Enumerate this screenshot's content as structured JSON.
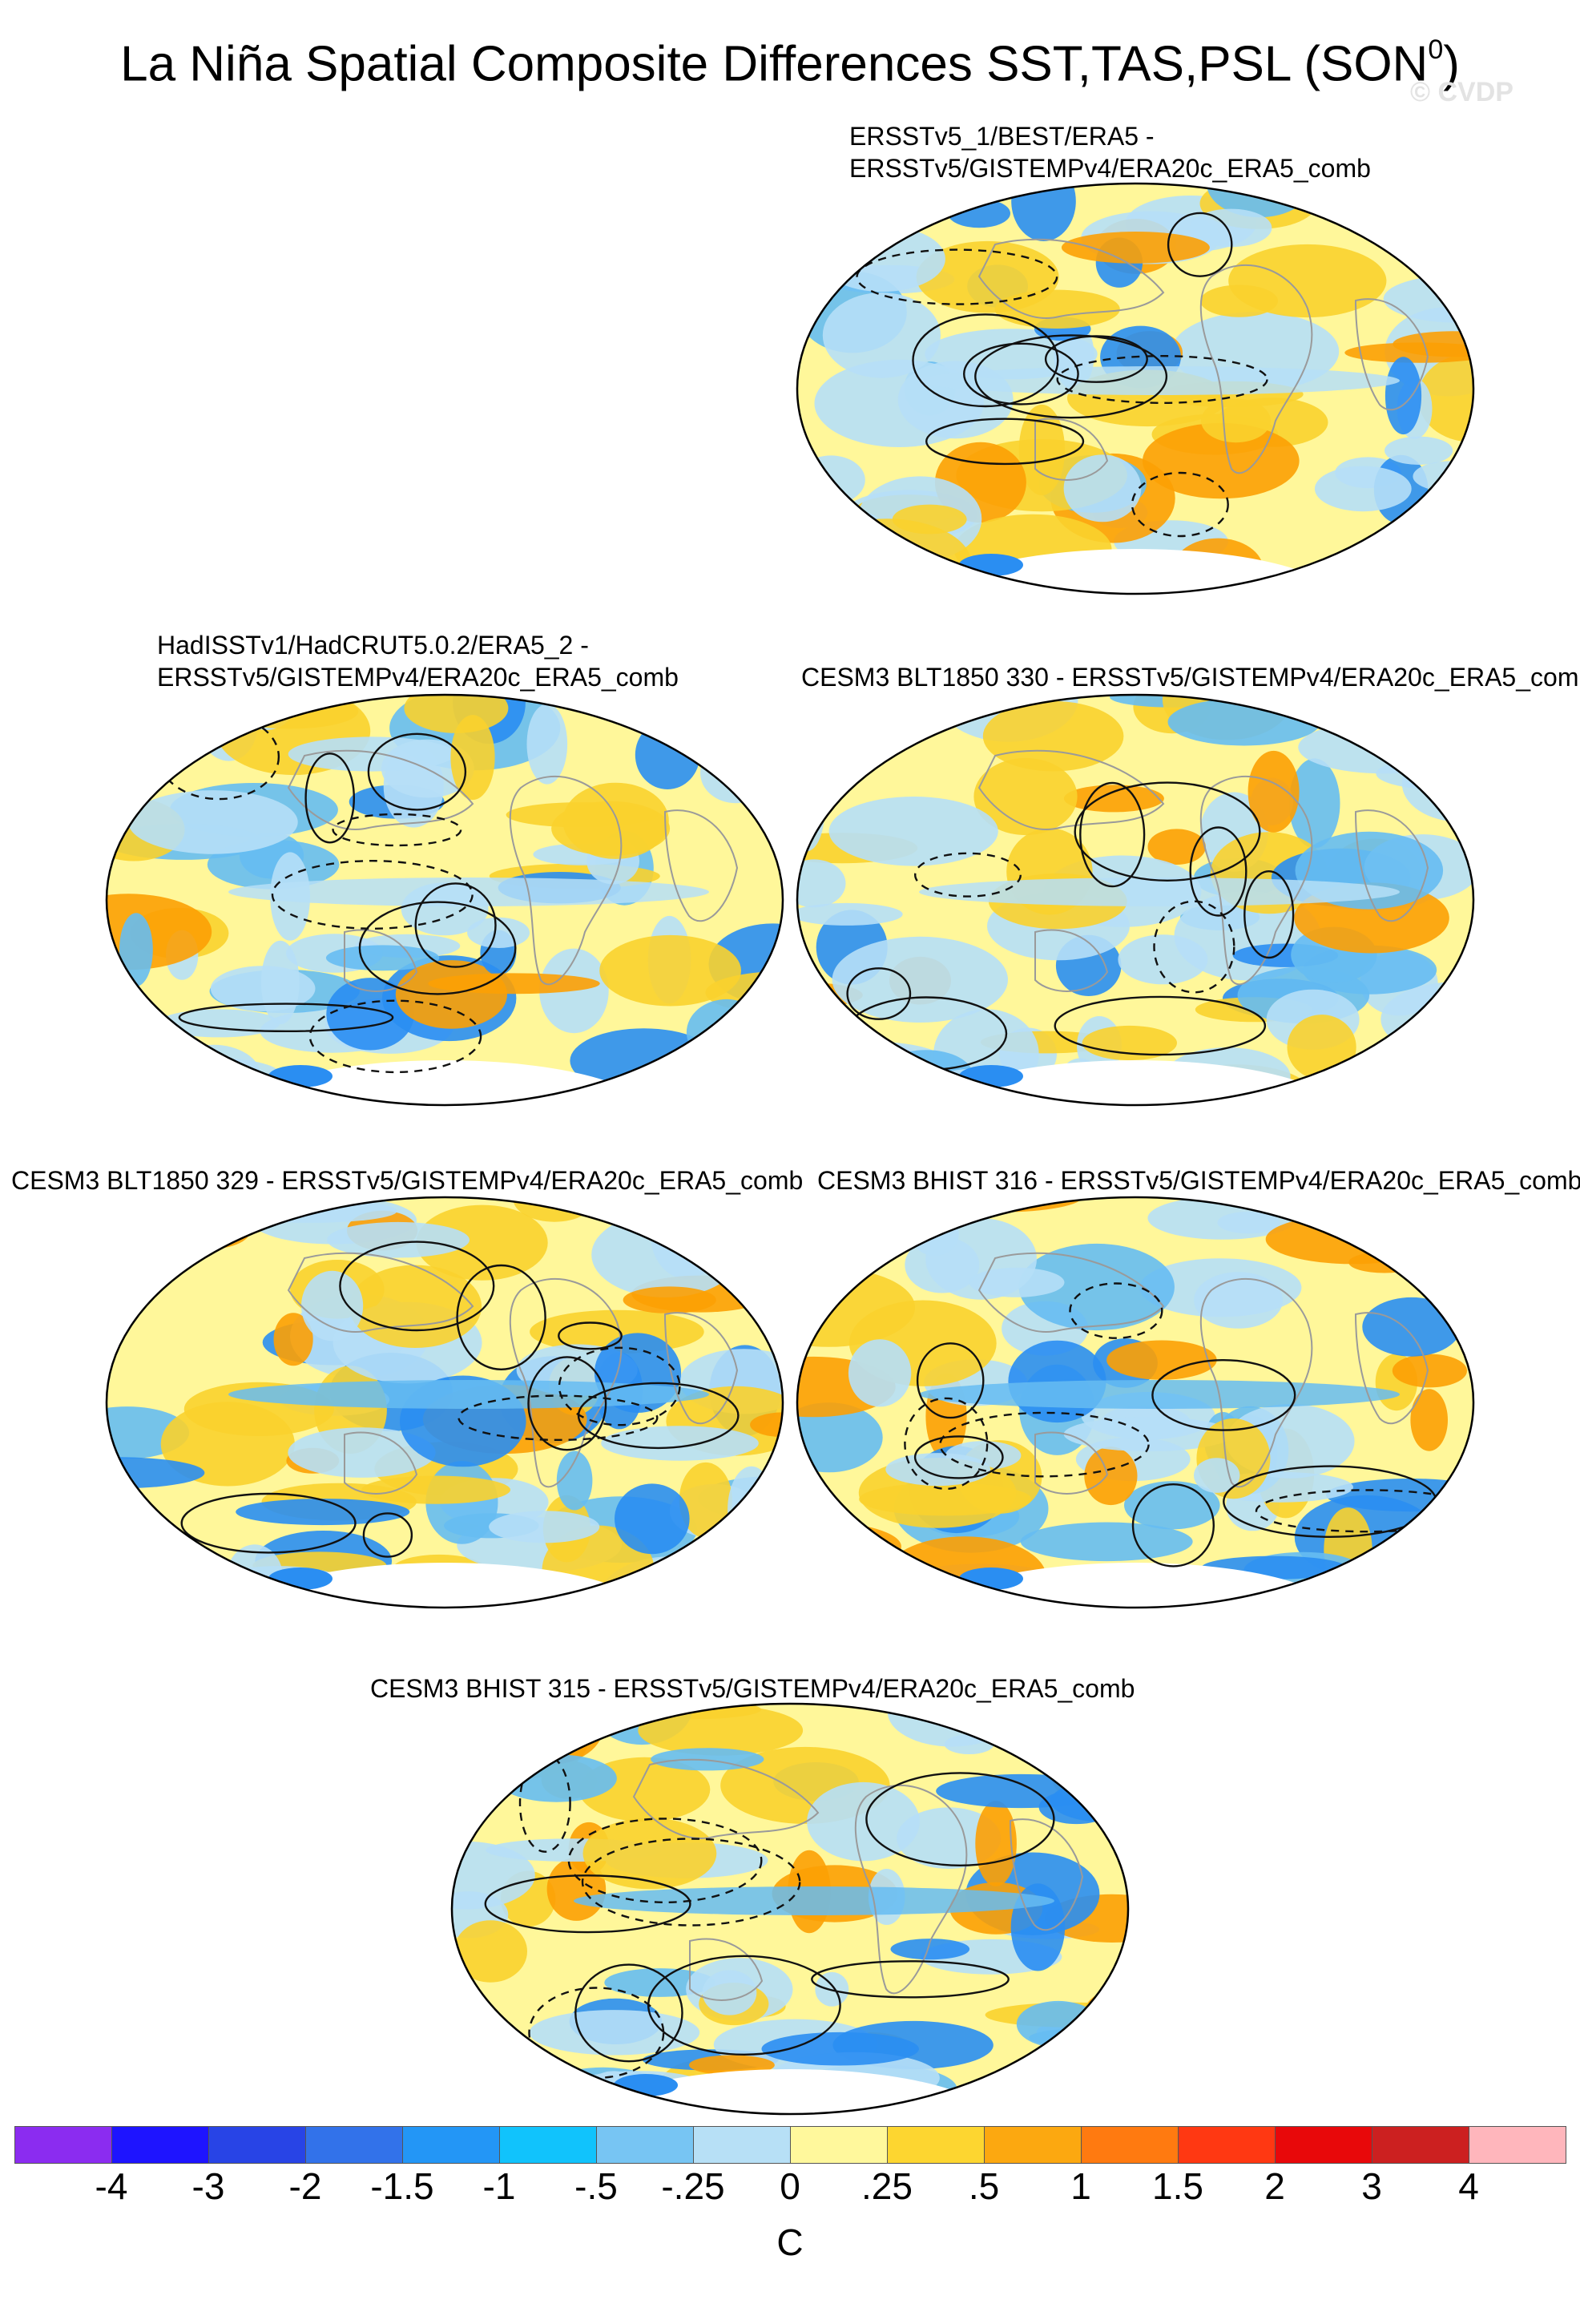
{
  "title": {
    "text": "La Niña Spatial Composite Differences SST,TAS,PSL (SON",
    "superscript": "0",
    "close": ")"
  },
  "watermark": "© CVDP",
  "panels": [
    {
      "title_lines": [
        "ERSSTv5_1/BEST/ERA5 -",
        "ERSSTv5/GISTEMPv4/ERA20c_ERA5_comb"
      ],
      "colors": {
        "warm": "#fad22d",
        "hot": "#fca004",
        "cool": "#b6dff7",
        "cold": "#66bcf2",
        "colder": "#2a8ef2"
      }
    },
    {
      "title_lines": [
        "HadISSTv1/HadCRUT5.0.2/ERA5_2 -",
        "ERSSTv5/GISTEMPv4/ERA20c_ERA5_comb"
      ]
    },
    {
      "title_lines": [
        "CESM3 BLT1850 330 - ERSSTv5/GISTEMPv4/ERA20c_ERA5_comb"
      ]
    },
    {
      "title_lines": [
        "CESM3 BLT1850 329 - ERSSTv5/GISTEMPv4/ERA20c_ERA5_comb"
      ]
    },
    {
      "title_lines": [
        "CESM3 BHIST 316 - ERSSTv5/GISTEMPv4/ERA20c_ERA5_comb"
      ]
    },
    {
      "title_lines": [
        "CESM3 BHIST 315 - ERSSTv5/GISTEMPv4/ERA20c_ERA5_comb"
      ]
    }
  ],
  "colorbar": {
    "units": "C",
    "labels": [
      "-4",
      "-3",
      "-2",
      "-1.5",
      "-1",
      "-.5",
      "-.25",
      "0",
      ".25",
      ".5",
      "1",
      "1.5",
      "2",
      "3",
      "4"
    ],
    "colors": [
      "#8b2cf0",
      "#1e14ff",
      "#2844e6",
      "#3272ea",
      "#2396f6",
      "#11c3fc",
      "#77c5f3",
      "#b7e0f6",
      "#fff89c",
      "#fdd630",
      "#fca810",
      "#ff7a10",
      "#ff3812",
      "#e8080a",
      "#cc2020",
      "#ffb6bc"
    ]
  }
}
